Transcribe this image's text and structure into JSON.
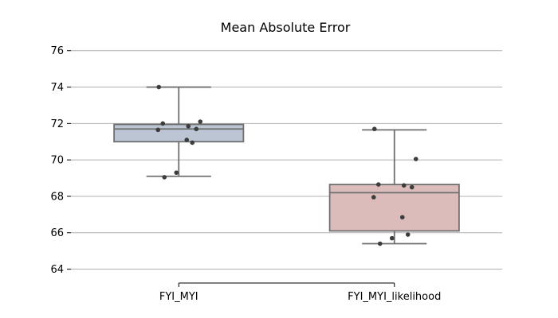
{
  "chart_data": {
    "type": "box",
    "title": "Mean Absolute Error",
    "xlabel": "",
    "ylabel": "",
    "ylim": [
      63.5,
      76.6
    ],
    "yticks": [
      64,
      66,
      68,
      70,
      72,
      74,
      76
    ],
    "grid": "horizontal",
    "categories": [
      "FYI_MYI",
      "FYI_MYI_likelihood"
    ],
    "boxes": [
      {
        "category": "FYI_MYI",
        "color": "#bbc5d3",
        "whisker_low": 69.1,
        "q1": 71.0,
        "median": 71.7,
        "q3": 71.95,
        "whisker_high": 74.0,
        "points": [
          74.0,
          72.1,
          72.0,
          71.85,
          71.7,
          71.65,
          71.1,
          70.95,
          69.3,
          69.05
        ]
      },
      {
        "category": "FYI_MYI_likelihood",
        "color": "#dcbcbb",
        "whisker_low": 65.4,
        "q1": 66.1,
        "median": 68.2,
        "q3": 68.65,
        "whisker_high": 71.65,
        "points": [
          71.7,
          70.05,
          68.65,
          68.6,
          68.5,
          67.95,
          66.85,
          65.9,
          65.7,
          65.4
        ]
      }
    ]
  }
}
